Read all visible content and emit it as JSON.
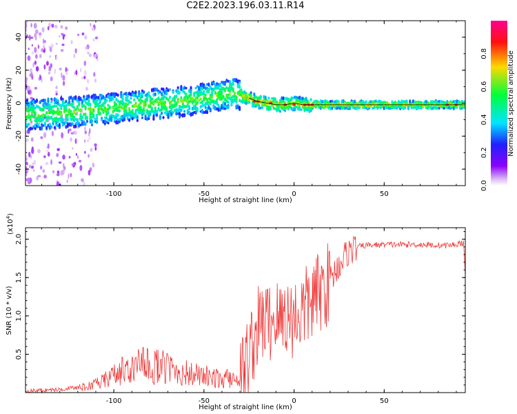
{
  "title": "C2E2.2023.196.03.11.R14",
  "colors": {
    "snr_line": "#ee3333",
    "ridge": "#000000",
    "colormap": [
      "#ffffff",
      "#dcb9f3",
      "#8b00ff",
      "#2020ff",
      "#00e5ff",
      "#00ff3a",
      "#ffd800",
      "#ff1010",
      "#ff0090"
    ]
  },
  "chart_data": [
    {
      "type": "heatmap",
      "xlabel": "Height of straight line (km)",
      "ylabel": "Frequency (Hz)",
      "xlim": [
        -149,
        95
      ],
      "ylim": [
        -50,
        50
      ],
      "x_ticks": [
        -100,
        -50,
        0,
        50
      ],
      "y_ticks": [
        -40,
        -20,
        0,
        20,
        40
      ],
      "colorbar": {
        "label": "Normalized spectral amplitude",
        "range": [
          0.0,
          1.0
        ],
        "ticks": [
          "0.0",
          "0.2",
          "0.4",
          "0.6",
          "0.8"
        ],
        "tick_values": [
          0.0,
          0.2,
          0.4,
          0.6,
          0.8
        ]
      },
      "ridge": {
        "x": [
          -149,
          -130,
          -110,
          -90,
          -70,
          -55,
          -45,
          -35,
          -30,
          -25,
          -20,
          -15,
          -10,
          -5,
          0,
          5,
          10,
          20,
          40,
          60,
          80,
          95
        ],
        "y": [
          -7,
          -6,
          -4,
          -2,
          0,
          2,
          4,
          6,
          5,
          3,
          1,
          0,
          -1,
          -1,
          0,
          -1,
          -1,
          -1,
          -1,
          -1,
          -1,
          -1
        ]
      }
    },
    {
      "type": "line",
      "xlabel": "Height of straight line (km)",
      "ylabel": "SNR (10 * v/v)",
      "yscale_label": "(x10",
      "yscale_exp": "4",
      "yscale_close": ")",
      "xlim": [
        -149,
        95
      ],
      "ylim": [
        0,
        2.15
      ],
      "x_ticks": [
        -100,
        -50,
        0,
        50
      ],
      "y_ticks": [
        0.5,
        1.0,
        1.5,
        2.0
      ],
      "y_tick_labels": [
        "0.5",
        "1.0",
        "1.5",
        "2.0"
      ],
      "series": [
        {
          "x": [
            -149,
            -140,
            -130,
            -125,
            -120,
            -115,
            -110,
            -105,
            -100,
            -95,
            -90,
            -85,
            -80,
            -75,
            -70,
            -65,
            -60,
            -55,
            -50,
            -45,
            -40,
            -35,
            -30,
            -28,
            -26,
            -24,
            -22,
            -20,
            -18,
            -16,
            -14,
            -12,
            -10,
            -8,
            -6,
            -4,
            -2,
            0,
            2,
            4,
            6,
            8,
            10,
            12,
            14,
            16,
            18,
            20,
            22,
            24,
            26,
            28,
            30,
            35,
            40,
            50,
            60,
            70,
            80,
            85,
            90,
            92,
            94,
            95
          ],
          "values": [
            0.02,
            0.03,
            0.04,
            0.06,
            0.06,
            0.08,
            0.1,
            0.15,
            0.22,
            0.27,
            0.3,
            0.33,
            0.34,
            0.32,
            0.3,
            0.27,
            0.24,
            0.22,
            0.2,
            0.18,
            0.17,
            0.17,
            0.2,
            0.3,
            0.45,
            0.6,
            0.7,
            0.85,
            0.9,
            0.95,
            0.9,
            0.95,
            1.0,
            0.9,
            1.05,
            1.0,
            0.95,
            1.0,
            1.0,
            1.05,
            1.1,
            1.15,
            1.2,
            1.25,
            1.3,
            1.35,
            1.4,
            1.48,
            1.55,
            1.63,
            1.7,
            1.78,
            1.84,
            1.9,
            1.92,
            1.93,
            1.93,
            1.93,
            1.92,
            1.92,
            1.93,
            1.95,
            1.95,
            1.5
          ]
        }
      ]
    }
  ]
}
